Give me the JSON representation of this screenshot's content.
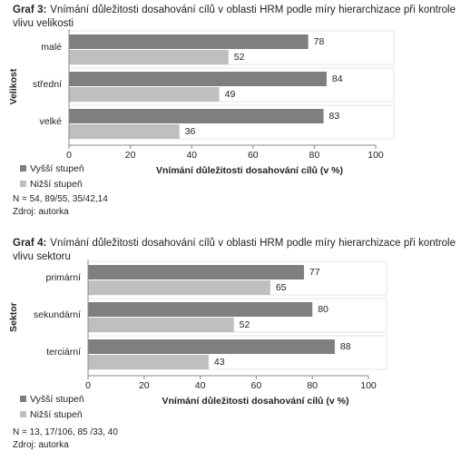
{
  "chart_data": [
    {
      "type": "bar",
      "orientation": "horizontal",
      "label": "Graf 3:",
      "title": "Vnímání důležitosti dosahování cílů v oblasti HRM podle míry hierarchizace při kontrole vlivu velikosti",
      "y_label": "Velikost",
      "x_label": "Vnímání důležitosti dosahování cílů (v %)",
      "categories": [
        "malé",
        "střední",
        "velké"
      ],
      "series": [
        {
          "name": "Vyšší stupeň",
          "color": "#7f7f7f",
          "values": [
            78,
            84,
            83
          ]
        },
        {
          "name": "Nižší stupeň",
          "color": "#bfbfbf",
          "values": [
            52,
            49,
            36
          ]
        }
      ],
      "xlim": [
        0,
        100
      ],
      "xticks": [
        0,
        20,
        40,
        60,
        80,
        100
      ],
      "notes": [
        "N = 54, 89/55, 35/42,14",
        "Zdroj: autorka"
      ]
    },
    {
      "type": "bar",
      "orientation": "horizontal",
      "label": "Graf 4:",
      "title": "Vnímání důležitosti dosahování cílů v oblasti HRM podle míry hierarchizace při kontrole vlivu sektoru",
      "y_label": "Sektor",
      "x_label": "Vnímání důležitosti dosahování cílů (v %)",
      "categories": [
        "primární",
        "sekundární",
        "terciární"
      ],
      "series": [
        {
          "name": "Vyšší stupeň",
          "color": "#7f7f7f",
          "values": [
            77,
            80,
            88
          ]
        },
        {
          "name": "Nižší stupeň",
          "color": "#bfbfbf",
          "values": [
            65,
            52,
            43
          ]
        }
      ],
      "xlim": [
        0,
        100
      ],
      "xticks": [
        0,
        20,
        40,
        60,
        80,
        100
      ],
      "notes": [
        "N = 13, 17/106, 85 /33, 40",
        "Zdroj: autorka"
      ]
    }
  ]
}
